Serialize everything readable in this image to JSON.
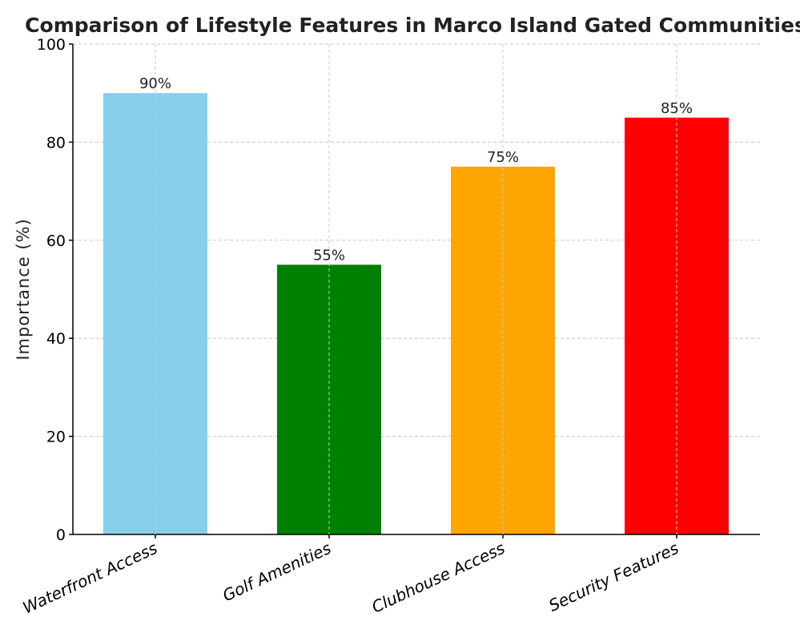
{
  "chart_data": {
    "type": "bar",
    "title": "Comparison of Lifestyle Features in Marco Island Gated Communities",
    "xlabel": "",
    "ylabel": "Importance (%)",
    "categories": [
      "Waterfront Access",
      "Golf Amenities",
      "Clubhouse Access",
      "Security Features"
    ],
    "values": [
      90,
      55,
      75,
      85
    ],
    "data_labels": [
      "90%",
      "55%",
      "75%",
      "85%"
    ],
    "colors": [
      "#87CEEB",
      "#008000",
      "#FFA500",
      "#FF0000"
    ],
    "ylim": [
      0,
      100
    ],
    "yticks": [
      0,
      20,
      40,
      60,
      80,
      100
    ],
    "ytick_labels": [
      "0",
      "20",
      "40",
      "60",
      "80",
      "100"
    ],
    "grid": true
  }
}
